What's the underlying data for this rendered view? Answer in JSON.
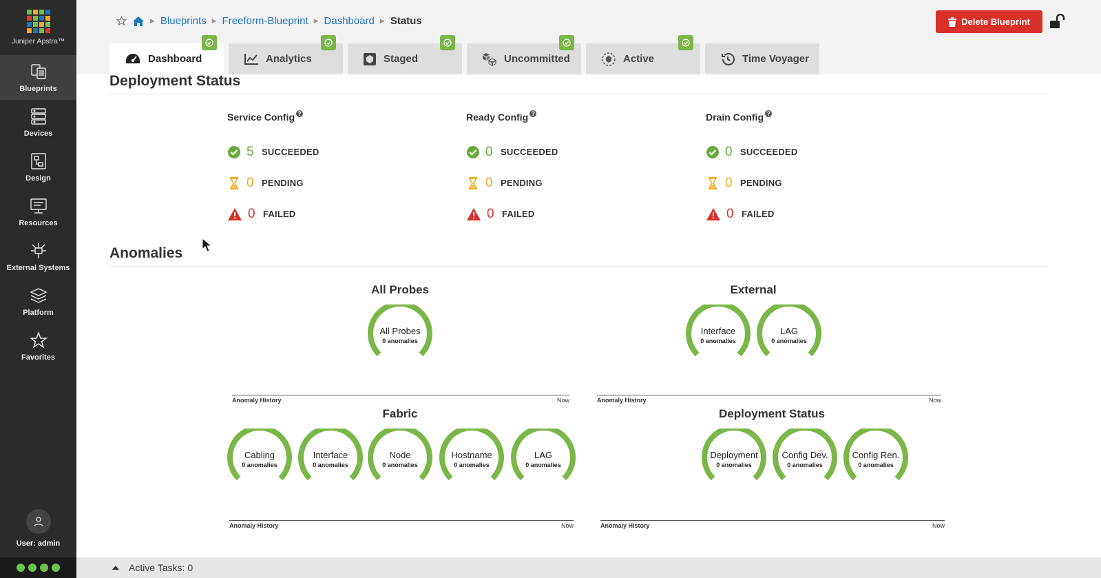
{
  "app": {
    "name": "Juniper Apstra™",
    "logo_colors": [
      "#6cc24a",
      "#f5a623",
      "#1d75c2",
      "#e23b2e"
    ]
  },
  "sidebar": {
    "items": [
      {
        "label": "Blueprints",
        "icon": "blueprints-icon"
      },
      {
        "label": "Devices",
        "icon": "devices-icon"
      },
      {
        "label": "Design",
        "icon": "design-icon"
      },
      {
        "label": "Resources",
        "icon": "resources-icon"
      },
      {
        "label": "External Systems",
        "icon": "external-systems-icon"
      },
      {
        "label": "Platform",
        "icon": "platform-icon"
      },
      {
        "label": "Favorites",
        "icon": "star-icon"
      }
    ],
    "user": "User: admin"
  },
  "breadcrumb": {
    "items": [
      "Blueprints",
      "Freeform-Blueprint",
      "Dashboard"
    ],
    "current": "Status"
  },
  "header": {
    "delete_label": "Delete Blueprint",
    "delete_color": "#d9312a"
  },
  "tabs": [
    {
      "label": "Dashboard",
      "checked": true
    },
    {
      "label": "Analytics",
      "checked": true
    },
    {
      "label": "Staged",
      "checked": true
    },
    {
      "label": "Uncommitted",
      "checked": true
    },
    {
      "label": "Active",
      "checked": true
    },
    {
      "label": "Time Voyager",
      "checked": false
    }
  ],
  "deployment": {
    "title": "Deployment Status",
    "columns": [
      {
        "title": "Service Config",
        "succeeded": "5",
        "pending": "0",
        "failed": "0"
      },
      {
        "title": "Ready Config",
        "succeeded": "0",
        "pending": "0",
        "failed": "0"
      },
      {
        "title": "Drain Config",
        "succeeded": "0",
        "pending": "0",
        "failed": "0"
      }
    ],
    "labels": {
      "succeeded": "SUCCEEDED",
      "pending": "PENDING",
      "failed": "FAILED"
    }
  },
  "anomalies": {
    "title": "Anomalies",
    "anomaly_text": "0 anomalies",
    "history_label": "Anomaly History",
    "now_label": "Now",
    "groups": {
      "all_probes": {
        "title": "All Probes",
        "gauges": [
          "All Probes"
        ]
      },
      "external": {
        "title": "External",
        "gauges": [
          "Interface",
          "LAG"
        ]
      },
      "fabric": {
        "title": "Fabric",
        "gauges": [
          "Cabling",
          "Interface",
          "Node",
          "Hostname",
          "LAG"
        ]
      },
      "deployment": {
        "title": "Deployment Status",
        "gauges": [
          "Deployment",
          "Config Dev.",
          "Config Ren."
        ]
      }
    },
    "gauge_color": "#7ab648"
  },
  "footer": {
    "active_tasks": "Active Tasks: 0"
  }
}
